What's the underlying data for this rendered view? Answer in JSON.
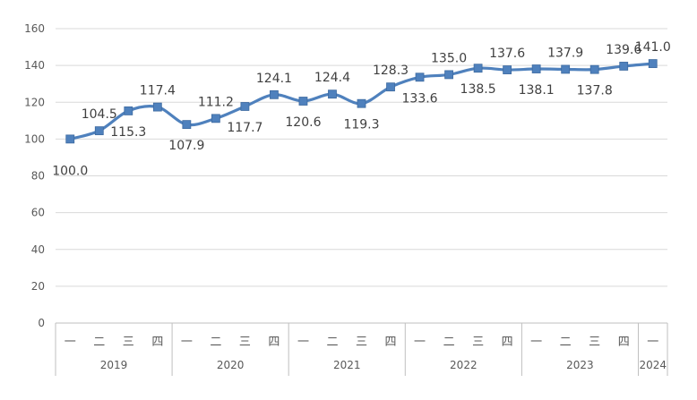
{
  "chart_data": {
    "type": "line",
    "title": "",
    "xlabel": "",
    "ylabel": "",
    "ylim": [
      0,
      160
    ],
    "yticks": [
      0,
      20,
      40,
      60,
      80,
      100,
      120,
      140,
      160
    ],
    "grid": true,
    "legend": "none",
    "colors": {
      "line": "#4f81bd",
      "marker": "#4f81bd",
      "grid": "#d9d9d9"
    },
    "categories": [
      "一",
      "二",
      "三",
      "四",
      "一",
      "二",
      "三",
      "四",
      "一",
      "二",
      "三",
      "四",
      "一",
      "二",
      "三",
      "四",
      "一",
      "二",
      "三",
      "四",
      "一"
    ],
    "years": [
      {
        "label": "2019",
        "count": 4
      },
      {
        "label": "2020",
        "count": 4
      },
      {
        "label": "2021",
        "count": 4
      },
      {
        "label": "2022",
        "count": 4
      },
      {
        "label": "2023",
        "count": 4
      },
      {
        "label": "2024",
        "count": 1
      }
    ],
    "series": [
      {
        "values": [
          100.0,
          104.5,
          115.3,
          117.4,
          107.9,
          111.2,
          117.7,
          124.1,
          120.6,
          124.4,
          119.3,
          128.3,
          133.6,
          135.0,
          138.5,
          137.6,
          138.1,
          137.9,
          137.8,
          139.6,
          141.0
        ],
        "labels": [
          "100.0",
          "104.5",
          "115.3",
          "117.4",
          "107.9",
          "111.2",
          "117.7",
          "124.1",
          "120.6",
          "124.4",
          "119.3",
          "128.3",
          "133.6",
          "135.0",
          "138.5",
          "137.6",
          "138.1",
          "137.9",
          "137.8",
          "139.6",
          "141.0"
        ],
        "label_side": [
          "below",
          "above",
          "below",
          "above",
          "below",
          "above",
          "below",
          "above",
          "below",
          "above",
          "below",
          "above",
          "below",
          "above",
          "below",
          "above",
          "below",
          "above",
          "below",
          "above",
          "above"
        ]
      }
    ]
  }
}
